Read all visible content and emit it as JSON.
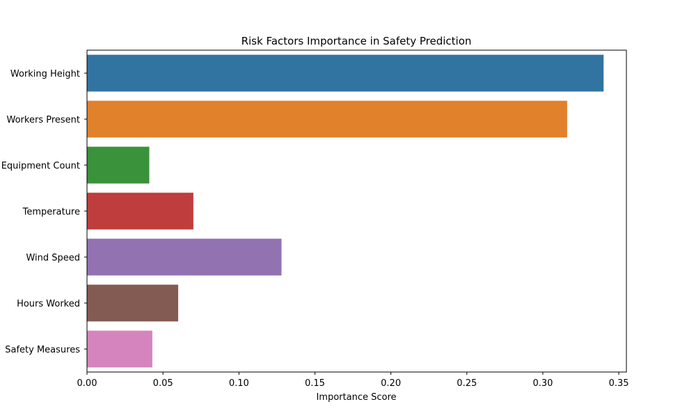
{
  "chart_data": {
    "type": "bar",
    "orientation": "horizontal",
    "title": "Risk Factors Importance in Safety Prediction",
    "xlabel": "Importance Score",
    "ylabel": "",
    "xlim": [
      0,
      0.355
    ],
    "xticks": [
      0.0,
      0.05,
      0.1,
      0.15,
      0.2,
      0.25,
      0.3,
      0.35
    ],
    "xtick_labels": [
      "0.00",
      "0.05",
      "0.10",
      "0.15",
      "0.20",
      "0.25",
      "0.30",
      "0.35"
    ],
    "grid": false,
    "categories": [
      "Working Height",
      "Workers Present",
      "Equipment Count",
      "Temperature",
      "Wind Speed",
      "Hours Worked",
      "Safety Measures"
    ],
    "values": [
      0.34,
      0.316,
      0.041,
      0.07,
      0.128,
      0.06,
      0.043
    ],
    "colors": [
      "#3274a1",
      "#e1812c",
      "#3a923a",
      "#c03d3e",
      "#9372b2",
      "#845b53",
      "#d684bd"
    ]
  }
}
